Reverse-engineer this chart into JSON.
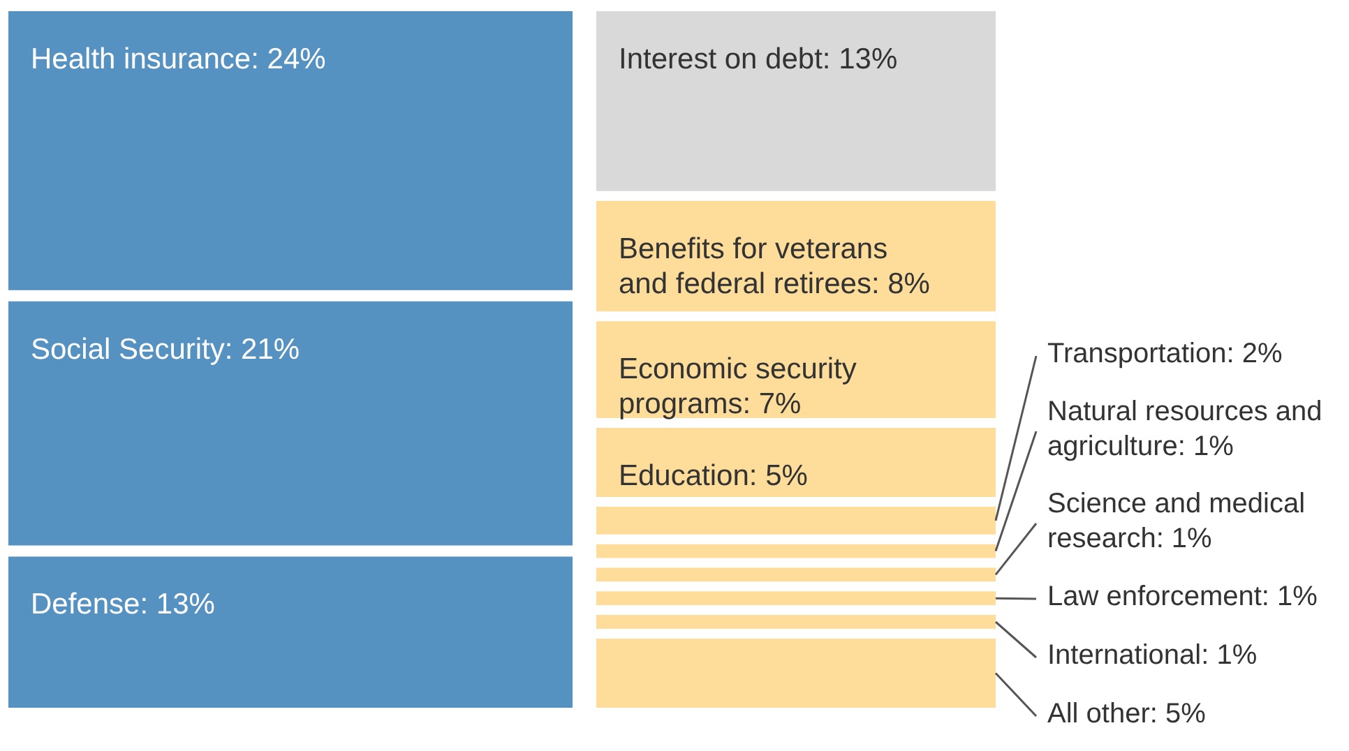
{
  "chart_data": {
    "type": "other",
    "categories": [
      "Health insurance",
      "Social Security",
      "Defense",
      "Interest on debt",
      "Benefits for veterans and federal retirees",
      "Economic security programs",
      "Education",
      "Transportation",
      "Natural resources and agriculture",
      "Science and medical research",
      "Law enforcement",
      "International",
      "All other"
    ],
    "values": [
      24,
      21,
      13,
      13,
      8,
      7,
      5,
      2,
      1,
      1,
      1,
      1,
      5
    ],
    "value_labels": [
      ": 24%",
      ": 21%",
      ": 13%",
      ": 13%",
      ": 8%",
      ": 7%",
      ": 5%",
      ": 2%",
      ": 1%",
      ": 1%",
      ": 1%",
      ": 1%",
      ": 5%"
    ],
    "colors": [
      "#5591c1",
      "#5591c1",
      "#5591c1",
      "#d9d9d9",
      "#fedc9a",
      "#fedc9a",
      "#fedc9a",
      "#fedc9a",
      "#fedc9a",
      "#fedc9a",
      "#fedc9a",
      "#fedc9a",
      "#fedc9a"
    ]
  }
}
